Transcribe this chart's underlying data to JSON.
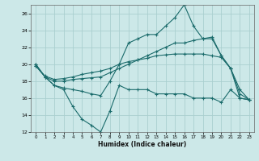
{
  "xlabel": "Humidex (Indice chaleur)",
  "bg_color": "#cce8e8",
  "line_color": "#1a6b6b",
  "grid_color": "#aacfcf",
  "xlim": [
    -0.5,
    23.5
  ],
  "ylim": [
    12,
    27
  ],
  "yticks": [
    12,
    14,
    16,
    18,
    20,
    22,
    24,
    26
  ],
  "xticks": [
    0,
    1,
    2,
    3,
    4,
    5,
    6,
    7,
    8,
    9,
    10,
    11,
    12,
    13,
    14,
    15,
    16,
    17,
    18,
    19,
    20,
    21,
    22,
    23
  ],
  "series": [
    [
      20,
      18.5,
      17.5,
      17,
      15,
      13.5,
      12.8,
      12,
      14.5,
      17.5,
      17,
      17,
      17,
      16.5,
      16.5,
      16.5,
      16.5,
      16,
      16,
      16,
      15.5,
      17,
      16,
      15.8
    ],
    [
      20,
      18.5,
      17.5,
      17.2,
      17,
      16.8,
      16.5,
      16.3,
      18,
      20,
      22.5,
      23,
      23.5,
      23.5,
      24.5,
      25.5,
      27,
      24.5,
      23,
      23,
      21,
      19.5,
      17,
      15.8
    ],
    [
      19.8,
      18.5,
      18,
      18,
      18.2,
      18.3,
      18.4,
      18.5,
      19,
      19.5,
      20,
      20.5,
      21,
      21.5,
      22,
      22.5,
      22.5,
      22.8,
      23,
      23.2,
      21,
      19.5,
      16.5,
      15.8
    ],
    [
      19.8,
      18.6,
      18.2,
      18.3,
      18.5,
      18.8,
      19,
      19.2,
      19.5,
      20,
      20.3,
      20.5,
      20.7,
      21,
      21.1,
      21.2,
      21.2,
      21.2,
      21.2,
      21,
      20.8,
      19.5,
      16,
      15.8
    ]
  ]
}
